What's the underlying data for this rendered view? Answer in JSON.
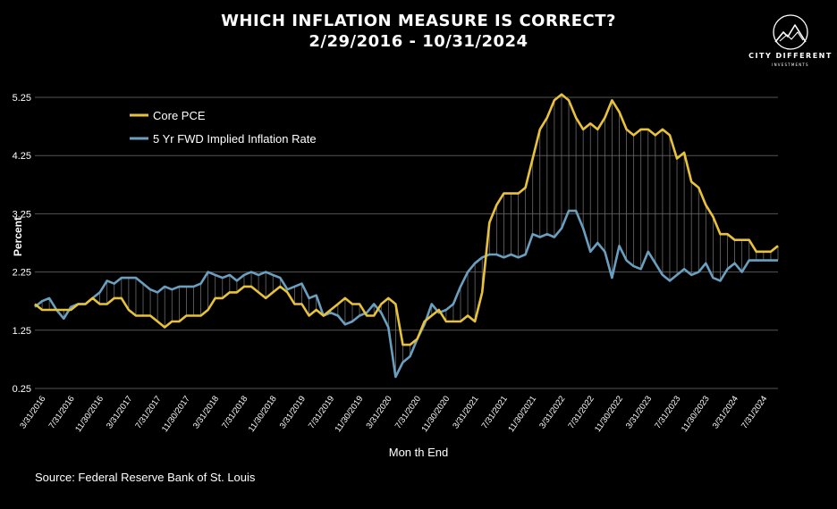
{
  "header": {
    "title_line1": "WHICH INFLATION MEASURE IS CORRECT?",
    "title_line2": "2/29/2016 - 10/31/2024"
  },
  "logo": {
    "name": "CITY DIFFERENT",
    "sub": "INVESTMENTS",
    "icon": "mountain-circle-logo"
  },
  "footer": {
    "source": "Source: Federal Reserve Bank of St. Louis"
  },
  "colors": {
    "background": "#000000",
    "core_pce": "#e8c23a",
    "fwd_rate": "#6a9fc0",
    "grid": "#555555",
    "fill_hatch": "#6b6b6b"
  },
  "chart_data": {
    "type": "line",
    "title": "WHICH INFLATION MEASURE IS CORRECT?",
    "subtitle": "2/29/2016 - 10/31/2024",
    "xlabel": "Mon th End",
    "ylabel": "Percent",
    "ylim": [
      0.25,
      5.25
    ],
    "yticks": [
      "0.25",
      "1.25",
      "2.25",
      "3.25",
      "4.25",
      "5.25"
    ],
    "grid": "horizontal",
    "legend": "top-left",
    "xtick_labels": [
      "3/31/2016",
      "7/31/2016",
      "11/30/2016",
      "3/31/2017",
      "7/31/2017",
      "11/30/2017",
      "3/31/2018",
      "7/31/2018",
      "11/30/2018",
      "3/31/2019",
      "7/31/2019",
      "11/30/2019",
      "3/31/2020",
      "7/31/2020",
      "11/30/2020",
      "3/31/2021",
      "7/31/2021",
      "11/30/2021",
      "3/31/2022",
      "7/31/2022",
      "11/30/2022",
      "3/31/2023",
      "7/31/2023",
      "11/30/2023",
      "3/31/2024",
      "7/31/2024"
    ],
    "xtick_index_start": 1,
    "xtick_index_step": 4,
    "series": [
      {
        "name": "Core PCE",
        "values": [
          1.7,
          1.6,
          1.6,
          1.6,
          1.6,
          1.6,
          1.7,
          1.7,
          1.8,
          1.7,
          1.7,
          1.8,
          1.8,
          1.6,
          1.5,
          1.5,
          1.5,
          1.4,
          1.3,
          1.4,
          1.4,
          1.5,
          1.5,
          1.5,
          1.6,
          1.8,
          1.8,
          1.9,
          1.9,
          2.0,
          2.0,
          1.9,
          1.8,
          1.9,
          2.0,
          1.9,
          1.7,
          1.7,
          1.5,
          1.6,
          1.5,
          1.6,
          1.7,
          1.8,
          1.7,
          1.7,
          1.5,
          1.5,
          1.7,
          1.8,
          1.7,
          1.0,
          1.0,
          1.1,
          1.4,
          1.5,
          1.6,
          1.4,
          1.4,
          1.4,
          1.5,
          1.4,
          1.9,
          3.1,
          3.4,
          3.6,
          3.6,
          3.6,
          3.7,
          4.2,
          4.7,
          4.9,
          5.2,
          5.3,
          5.2,
          4.9,
          4.7,
          4.8,
          4.7,
          4.9,
          5.2,
          5.0,
          4.7,
          4.6,
          4.7,
          4.7,
          4.6,
          4.7,
          4.6,
          4.2,
          4.3,
          3.8,
          3.7,
          3.4,
          3.2,
          2.9,
          2.9,
          2.8,
          2.8,
          2.8,
          2.6,
          2.6,
          2.6,
          2.7
        ]
      },
      {
        "name": "5 Yr FWD Implied Inflation Rate",
        "values": [
          1.65,
          1.75,
          1.8,
          1.6,
          1.45,
          1.65,
          1.7,
          1.7,
          1.8,
          1.9,
          2.1,
          2.05,
          2.15,
          2.15,
          2.15,
          2.05,
          1.95,
          1.9,
          2.0,
          1.95,
          2.0,
          2.0,
          2.0,
          2.05,
          2.25,
          2.2,
          2.15,
          2.2,
          2.1,
          2.2,
          2.25,
          2.2,
          2.25,
          2.2,
          2.15,
          1.95,
          2.0,
          2.05,
          1.8,
          1.85,
          1.5,
          1.55,
          1.5,
          1.35,
          1.4,
          1.5,
          1.55,
          1.7,
          1.55,
          1.3,
          0.45,
          0.7,
          0.8,
          1.1,
          1.35,
          1.7,
          1.55,
          1.6,
          1.7,
          2.0,
          2.25,
          2.4,
          2.5,
          2.55,
          2.55,
          2.5,
          2.55,
          2.5,
          2.55,
          2.9,
          2.85,
          2.9,
          2.85,
          3.0,
          3.3,
          3.3,
          3.0,
          2.6,
          2.75,
          2.6,
          2.15,
          2.7,
          2.45,
          2.35,
          2.3,
          2.6,
          2.4,
          2.2,
          2.1,
          2.2,
          2.3,
          2.2,
          2.25,
          2.4,
          2.15,
          2.1,
          2.3,
          2.4,
          2.25,
          2.45,
          2.45,
          2.45,
          2.45,
          2.45
        ]
      }
    ]
  }
}
